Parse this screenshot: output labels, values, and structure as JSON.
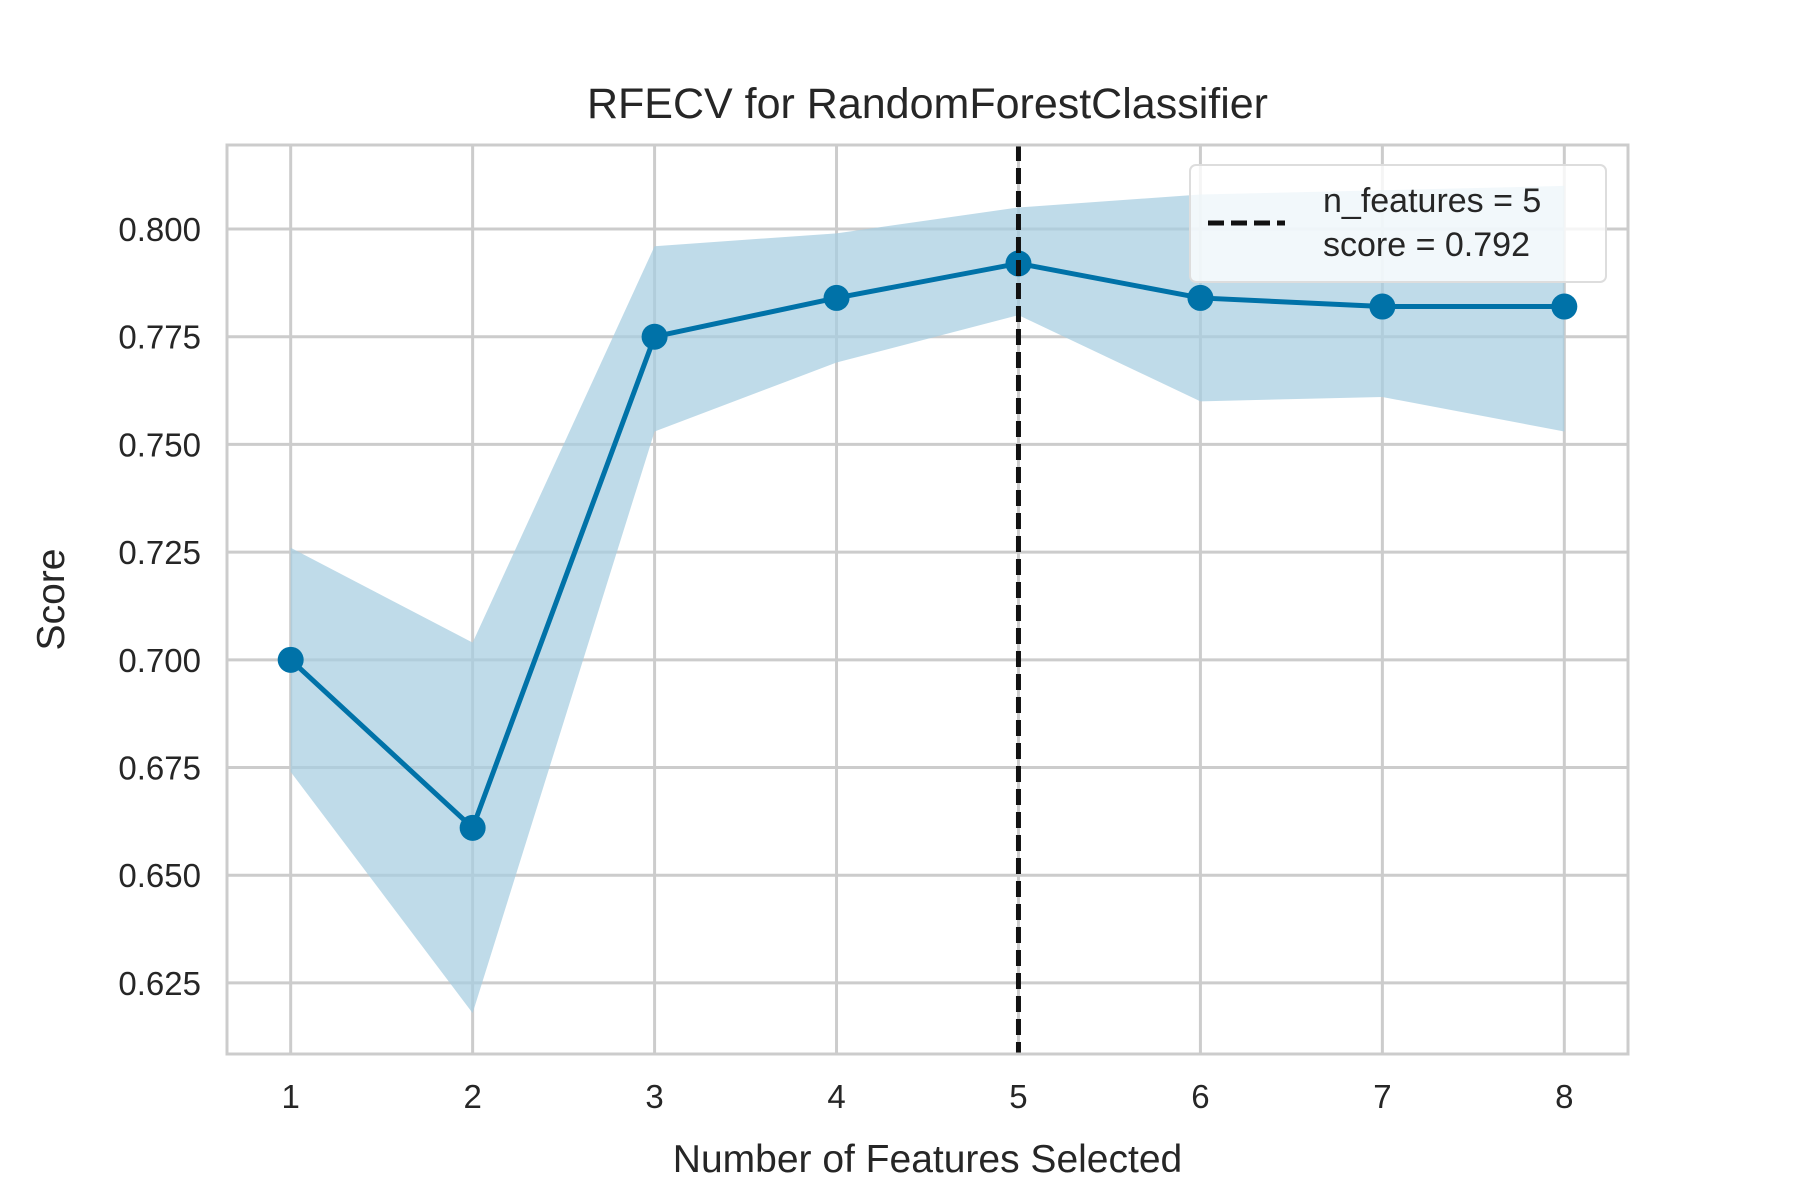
{
  "chart_data": {
    "type": "line",
    "title": "RFECV for RandomForestClassifier",
    "xlabel": "Number of Features Selected",
    "ylabel": "Score",
    "x": [
      1,
      2,
      3,
      4,
      5,
      6,
      7,
      8
    ],
    "series": [
      {
        "values": [
          0.7,
          0.661,
          0.775,
          0.784,
          0.792,
          0.784,
          0.782,
          0.782
        ],
        "upper": [
          0.726,
          0.704,
          0.796,
          0.799,
          0.805,
          0.808,
          0.809,
          0.81
        ],
        "lower": [
          0.674,
          0.618,
          0.753,
          0.769,
          0.78,
          0.76,
          0.761,
          0.753
        ],
        "color": "#0072a8",
        "band_color": "#a6cde0"
      }
    ],
    "xticks": [
      "1",
      "2",
      "3",
      "4",
      "5",
      "6",
      "7",
      "8"
    ],
    "yticks": [
      "0.625",
      "0.650",
      "0.675",
      "0.700",
      "0.725",
      "0.750",
      "0.775",
      "0.800"
    ],
    "ytick_values": [
      0.625,
      0.65,
      0.675,
      0.7,
      0.725,
      0.75,
      0.775,
      0.8
    ],
    "xlim": [
      0.65,
      8.35
    ],
    "ylim": [
      0.6085,
      0.8195
    ],
    "grid": true,
    "vline": {
      "x": 5,
      "style": "dashed",
      "color": "#111111"
    },
    "legend": {
      "placement": "top-right",
      "lines": [
        "n_features = 5",
        "score = 0.792"
      ]
    }
  }
}
